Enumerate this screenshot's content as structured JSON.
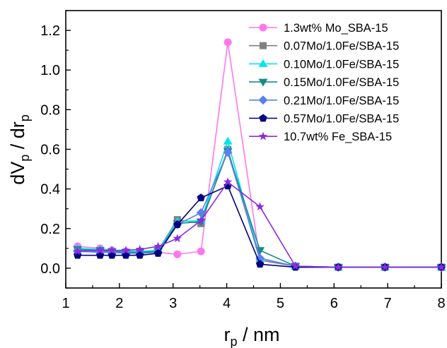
{
  "chart_data": {
    "type": "line",
    "xlabel_main": "r",
    "xlabel_sub": "p",
    "xlabel_unit": " / nm",
    "ylabel_parts": [
      "dV",
      "p",
      " / dr",
      "p"
    ],
    "xlim": [
      1,
      8
    ],
    "ylim": [
      -0.1,
      1.3
    ],
    "xticks": [
      1,
      2,
      3,
      4,
      5,
      6,
      7,
      8
    ],
    "xtick_labels": [
      "1",
      "2",
      "3",
      "4",
      "5",
      "6",
      "7",
      "8"
    ],
    "yticks": [
      0.0,
      0.2,
      0.4,
      0.6,
      0.8,
      1.0,
      1.2
    ],
    "ytick_labels": [
      "0.0",
      "0.2",
      "0.4",
      "0.6",
      "0.8",
      "1.0",
      "1.2"
    ],
    "grid": false,
    "legend_position": "top-right",
    "x": [
      1.22,
      1.64,
      1.86,
      2.12,
      2.38,
      2.72,
      3.08,
      3.52,
      4.02,
      4.62,
      5.28,
      6.08,
      6.95,
      8.0
    ],
    "series": [
      {
        "name": "1.3wt% Mo_SBA-15",
        "color": "#ff77ee",
        "marker": "circle",
        "values": [
          0.11,
          0.1,
          0.09,
          0.085,
          0.08,
          0.08,
          0.07,
          0.085,
          1.14,
          0.04,
          0.01,
          0.005,
          0.005,
          0.005
        ]
      },
      {
        "name": "0.07Mo/1.0Fe/SBA-15",
        "color": "#808080",
        "marker": "square",
        "values": [
          0.09,
          0.085,
          0.08,
          0.08,
          0.08,
          0.09,
          0.245,
          0.225,
          0.6,
          0.04,
          0.01,
          0.005,
          0.005,
          0.005
        ]
      },
      {
        "name": "0.10Mo/1.0Fe/SBA-15",
        "color": "#00e5ee",
        "marker": "triangle-up",
        "values": [
          0.1,
          0.095,
          0.09,
          0.085,
          0.085,
          0.09,
          0.235,
          0.24,
          0.64,
          0.05,
          0.01,
          0.005,
          0.005,
          0.005
        ]
      },
      {
        "name": "0.15Mo/1.0Fe/SBA-15",
        "color": "#1a8a8a",
        "marker": "triangle-down",
        "values": [
          0.095,
          0.09,
          0.085,
          0.08,
          0.08,
          0.085,
          0.225,
          0.235,
          0.59,
          0.09,
          0.01,
          0.005,
          0.005,
          0.005
        ]
      },
      {
        "name": "0.21Mo/1.0Fe/SBA-15",
        "color": "#5b7ff0",
        "marker": "diamond",
        "values": [
          0.085,
          0.08,
          0.08,
          0.075,
          0.075,
          0.08,
          0.22,
          0.28,
          0.585,
          0.05,
          0.01,
          0.005,
          0.005,
          0.005
        ]
      },
      {
        "name": "0.57Mo/1.0Fe/SBA-15",
        "color": "#000080",
        "marker": "pentagon",
        "values": [
          0.065,
          0.065,
          0.065,
          0.065,
          0.065,
          0.075,
          0.22,
          0.355,
          0.415,
          0.02,
          0.005,
          0.005,
          0.005,
          0.005
        ]
      },
      {
        "name": "10.7wt% Fe_SBA-15",
        "color": "#8a2be2",
        "marker": "star",
        "values": [
          0.085,
          0.09,
          0.09,
          0.09,
          0.095,
          0.11,
          0.15,
          0.24,
          0.435,
          0.31,
          0.01,
          0.005,
          0.005,
          0.005
        ]
      }
    ]
  }
}
